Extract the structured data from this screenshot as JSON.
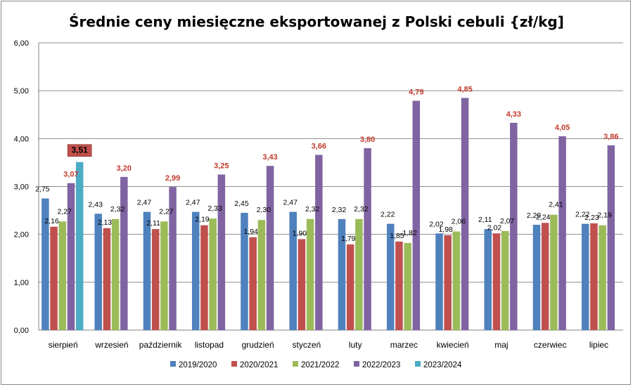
{
  "chart_data": {
    "type": "bar",
    "title": "Średnie ceny miesięczne eksportowanej z Polski cebuli {zł/kg]",
    "xlabel": "",
    "ylabel": "",
    "ylim": [
      0,
      6
    ],
    "yticks": [
      "0,00",
      "1,00",
      "2,00",
      "3,00",
      "4,00",
      "5,00",
      "6,00"
    ],
    "grid": true,
    "legend_position": "bottom",
    "categories": [
      "sierpień",
      "wrzesień",
      "październik",
      "listopad",
      "grudzień",
      "styczeń",
      "luty",
      "marzec",
      "kwiecień",
      "maj",
      "czerwiec",
      "lipiec"
    ],
    "series": [
      {
        "name": "2019/2020",
        "color": "#4f81bd",
        "values": [
          2.75,
          2.43,
          2.47,
          2.47,
          2.45,
          2.47,
          2.32,
          2.22,
          2.02,
          2.11,
          2.2,
          2.22
        ],
        "labels": [
          "2,75",
          "2,43",
          "2,47",
          "2,47",
          "2,45",
          "2,47",
          "2,32",
          "2,22",
          "2,02",
          "2,11",
          "2,20",
          "2,22"
        ]
      },
      {
        "name": "2020/2021",
        "color": "#c0504d",
        "values": [
          2.16,
          2.13,
          2.11,
          2.19,
          1.94,
          1.9,
          1.79,
          1.85,
          1.98,
          2.02,
          2.24,
          2.23
        ],
        "labels": [
          "2,16",
          "2,13",
          "2,11",
          "2,19",
          "1,94",
          "1,90",
          "1,79",
          "1,85",
          "1,98",
          "2,02",
          "2,24",
          "2,23"
        ]
      },
      {
        "name": "2021/2022",
        "color": "#9bbb59",
        "values": [
          2.27,
          2.32,
          2.27,
          2.33,
          2.3,
          2.32,
          2.32,
          1.82,
          2.06,
          2.07,
          2.41,
          2.19
        ],
        "labels": [
          "2,27",
          "2,32",
          "2,27",
          "2,33",
          "2,30",
          "2,32",
          "2,32",
          "1,82",
          "2,06",
          "2,07",
          "2,41",
          "2,19"
        ]
      },
      {
        "name": "2022/2023",
        "color": "#8064a2",
        "values": [
          3.07,
          3.2,
          2.99,
          3.25,
          3.43,
          3.66,
          3.8,
          4.79,
          4.85,
          4.33,
          4.05,
          3.86
        ],
        "labels": [
          "3,07",
          "3,20",
          "2,99",
          "3,25",
          "3,43",
          "3,66",
          "3,80",
          "4,79",
          "4,85",
          "4,33",
          "4,05",
          "3,86"
        ]
      },
      {
        "name": "2023/2024",
        "color": "#4bacc6",
        "values": [
          3.51,
          null,
          null,
          null,
          null,
          null,
          null,
          null,
          null,
          null,
          null,
          null
        ],
        "labels": [
          "3,51",
          null,
          null,
          null,
          null,
          null,
          null,
          null,
          null,
          null,
          null,
          null
        ]
      }
    ],
    "highlight": {
      "label_color": "#c0392b",
      "box_fill": "#c0504d",
      "box_text_color": "#000000"
    }
  }
}
